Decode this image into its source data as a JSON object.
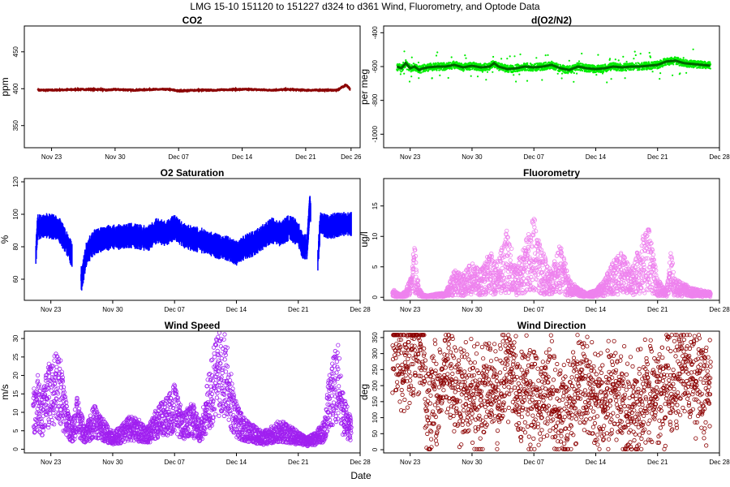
{
  "suptitle": "LMG   15-10     151120 to 151227     d324 to d361    Wind, Fluorometry, and Optode Data",
  "xlabel": "Date",
  "chart_data": [
    {
      "id": "co2",
      "type": "scatter",
      "title": "CO2",
      "ylabel": "ppm",
      "color": "#8b0000",
      "marker": "line",
      "xlim": [
        324,
        361
      ],
      "ylim": [
        320,
        485
      ],
      "xticks": [
        {
          "day": 327,
          "label": "Nov 23"
        },
        {
          "day": 334,
          "label": "Nov 30"
        },
        {
          "day": 341,
          "label": "Dec 07"
        },
        {
          "day": 348,
          "label": "Dec 14"
        },
        {
          "day": 355,
          "label": "Dec 21"
        },
        {
          "day": 360,
          "label": "Dec 26"
        }
      ],
      "yticks": [
        350,
        400,
        450
      ],
      "series": [
        {
          "x": [
            325.5,
            327,
            330,
            332.5,
            333,
            334,
            336,
            338,
            340,
            341,
            343,
            345,
            347,
            349,
            351,
            353,
            355,
            357,
            358.5,
            359,
            359.5,
            360
          ],
          "y": [
            398,
            398,
            399,
            399,
            398,
            399,
            398,
            399,
            399,
            397,
            398,
            398,
            399,
            399,
            398,
            399,
            398,
            398,
            398,
            402,
            405,
            398
          ]
        }
      ]
    },
    {
      "id": "o2n2",
      "type": "scatter",
      "title": "d(O2/N2)",
      "ylabel": "per meg",
      "color": "#00ee00",
      "marker": "dots",
      "overlay_color": "#006400",
      "xlim": [
        324,
        362
      ],
      "ylim": [
        -1080,
        -360
      ],
      "xticks": [
        {
          "day": 327,
          "label": "Nov 23"
        },
        {
          "day": 334,
          "label": "Nov 30"
        },
        {
          "day": 341,
          "label": "Dec 07"
        },
        {
          "day": 348,
          "label": "Dec 14"
        },
        {
          "day": 355,
          "label": "Dec 21"
        },
        {
          "day": 362,
          "label": "Dec 28"
        }
      ],
      "yticks": [
        -1000,
        -800,
        -600,
        -400
      ],
      "series": [
        {
          "x": [
            325.5,
            326,
            326.5,
            327,
            327.5,
            328,
            328.5,
            329,
            330,
            331,
            332,
            333,
            334,
            335,
            336,
            336.5,
            337,
            338,
            339,
            340,
            341,
            342,
            343,
            344,
            345,
            346,
            347,
            348,
            349,
            350,
            351,
            352,
            353,
            354,
            355,
            356,
            357,
            358,
            359,
            360,
            361
          ],
          "y": [
            -600,
            -610,
            -580,
            -610,
            -600,
            -620,
            -610,
            -605,
            -600,
            -600,
            -590,
            -605,
            -595,
            -605,
            -600,
            -580,
            -600,
            -615,
            -610,
            -600,
            -605,
            -600,
            -590,
            -610,
            -620,
            -600,
            -610,
            -615,
            -610,
            -600,
            -605,
            -600,
            -600,
            -595,
            -590,
            -570,
            -565,
            -580,
            -585,
            -590,
            -595
          ]
        }
      ]
    },
    {
      "id": "o2sat",
      "type": "scatter",
      "title": "O2 Saturation",
      "ylabel": "%",
      "color": "#0000ff",
      "marker": "band",
      "xlim": [
        324,
        362
      ],
      "ylim": [
        47,
        122
      ],
      "xticks": [
        {
          "day": 327,
          "label": "Nov 23"
        },
        {
          "day": 334,
          "label": "Nov 30"
        },
        {
          "day": 341,
          "label": "Dec 07"
        },
        {
          "day": 348,
          "label": "Dec 14"
        },
        {
          "day": 355,
          "label": "Dec 21"
        },
        {
          "day": 362,
          "label": "Dec 28"
        }
      ],
      "yticks": [
        60,
        80,
        100,
        120
      ],
      "series": [
        {
          "x": [
            325.3,
            325.5,
            326.5,
            327.5,
            328,
            328.5,
            329,
            329.3,
            330.5,
            331,
            331.5,
            332,
            333,
            334,
            335,
            336,
            337,
            338,
            339,
            340,
            341,
            342,
            343,
            344,
            345,
            346,
            347,
            348,
            349,
            350,
            351,
            352,
            353,
            354,
            355,
            355.5,
            356,
            356.3,
            357.2,
            357.5,
            358,
            358.5,
            359,
            360,
            361
          ],
          "y": [
            75,
            92,
            93,
            92,
            90,
            85,
            80,
            76,
            60,
            75,
            80,
            83,
            85,
            86,
            86,
            87,
            86,
            85,
            90,
            88,
            92,
            87,
            85,
            84,
            82,
            80,
            79,
            76,
            80,
            82,
            86,
            90,
            88,
            92,
            88,
            80,
            80,
            105,
            70,
            95,
            93,
            92,
            93,
            94,
            94
          ]
        }
      ]
    },
    {
      "id": "fluor",
      "type": "scatter",
      "title": "Fluorometry",
      "ylabel": "ug/l",
      "color": "#ee82ee",
      "marker": "circles",
      "xlim": [
        324,
        362
      ],
      "ylim": [
        -0.5,
        19.5
      ],
      "xticks": [
        {
          "day": 327,
          "label": "Nov 23"
        },
        {
          "day": 334,
          "label": "Nov 30"
        },
        {
          "day": 341,
          "label": "Dec 07"
        },
        {
          "day": 348,
          "label": "Dec 14"
        },
        {
          "day": 355,
          "label": "Dec 21"
        },
        {
          "day": 362,
          "label": "Dec 28"
        }
      ],
      "yticks": [
        0,
        5,
        10,
        15
      ],
      "series": [
        {
          "x": [
            325,
            325.5,
            326,
            326.5,
            327,
            327.5,
            328,
            328.5,
            329,
            329.5,
            330,
            331,
            332,
            333,
            334,
            335,
            336,
            337,
            338,
            339,
            340,
            341,
            342,
            343,
            344,
            345,
            346,
            347,
            348,
            349,
            350,
            351,
            352,
            353,
            354,
            355,
            356,
            356.5,
            357,
            358,
            359,
            360,
            361
          ],
          "y": [
            1,
            0.5,
            0.3,
            0.8,
            2,
            6,
            1,
            0.3,
            0.2,
            0.3,
            0.4,
            0.5,
            3,
            2.5,
            4,
            3,
            5,
            4,
            8,
            3.5,
            6,
            9,
            5,
            3,
            6,
            2,
            1,
            0.5,
            0.8,
            2,
            4,
            5,
            3,
            6,
            8,
            2,
            0.8,
            5,
            2,
            1.5,
            1,
            0.8,
            0.6
          ]
        }
      ]
    },
    {
      "id": "wspd",
      "type": "scatter",
      "title": "Wind Speed",
      "ylabel": "m/s",
      "color": "#a020f0",
      "marker": "circles",
      "xlim": [
        324,
        362
      ],
      "ylim": [
        -1,
        32
      ],
      "xticks": [
        {
          "day": 327,
          "label": "Nov 23"
        },
        {
          "day": 334,
          "label": "Nov 30"
        },
        {
          "day": 341,
          "label": "Dec 07"
        },
        {
          "day": 348,
          "label": "Dec 14"
        },
        {
          "day": 355,
          "label": "Dec 21"
        },
        {
          "day": 362,
          "label": "Dec 28"
        }
      ],
      "yticks": [
        0,
        5,
        10,
        15,
        20,
        25,
        30
      ],
      "series": [
        {
          "x": [
            325,
            325.5,
            326,
            326.5,
            327,
            327.5,
            328,
            328.5,
            329,
            329.5,
            330,
            330.5,
            331,
            332,
            333,
            334,
            335,
            336,
            337,
            338,
            339,
            340,
            341,
            342,
            343,
            344,
            345,
            345.5,
            346,
            346.5,
            347,
            347.5,
            348,
            349,
            350,
            351,
            352,
            353,
            354,
            355,
            356,
            357,
            358,
            358.5,
            359,
            359.5,
            360,
            361
          ],
          "y": [
            10,
            13,
            9,
            14,
            15,
            16,
            18,
            10,
            6,
            5,
            9,
            6,
            4,
            8,
            5,
            3,
            4,
            6,
            5,
            4,
            7,
            9,
            11,
            6,
            8,
            5,
            14,
            18,
            22,
            24,
            17,
            12,
            8,
            5,
            4,
            3,
            4,
            5,
            4,
            3,
            2,
            3,
            5,
            13,
            16,
            18,
            10,
            5
          ]
        }
      ]
    },
    {
      "id": "wdir",
      "type": "scatter",
      "title": "Wind Direction",
      "ylabel": "deg",
      "color": "#8b0000",
      "marker": "circles",
      "xlim": [
        324,
        362
      ],
      "ylim": [
        -10,
        370
      ],
      "xticks": [
        {
          "day": 327,
          "label": "Nov 23"
        },
        {
          "day": 334,
          "label": "Nov 30"
        },
        {
          "day": 341,
          "label": "Dec 07"
        },
        {
          "day": 348,
          "label": "Dec 14"
        },
        {
          "day": 355,
          "label": "Dec 21"
        },
        {
          "day": 362,
          "label": "Dec 28"
        }
      ],
      "yticks": [
        0,
        50,
        100,
        150,
        200,
        250,
        300,
        350
      ],
      "series": [
        {
          "x": [
            325,
            325.5,
            326,
            326.5,
            327,
            327.5,
            328,
            328.5,
            329,
            329.5,
            330,
            331,
            332,
            333,
            334,
            335,
            336,
            337,
            338,
            339,
            340,
            341,
            342,
            343,
            344,
            345,
            346,
            347,
            348,
            349,
            350,
            351,
            352,
            353,
            354,
            355,
            356,
            357,
            358,
            359,
            360,
            361
          ],
          "y": [
            300,
            320,
            280,
            250,
            300,
            330,
            310,
            350,
            80,
            200,
            150,
            250,
            200,
            150,
            180,
            120,
            200,
            160,
            250,
            200,
            180,
            140,
            170,
            200,
            120,
            150,
            180,
            200,
            150,
            120,
            200,
            140,
            100,
            150,
            200,
            160,
            180,
            220,
            250,
            200,
            180,
            200
          ]
        }
      ]
    }
  ]
}
